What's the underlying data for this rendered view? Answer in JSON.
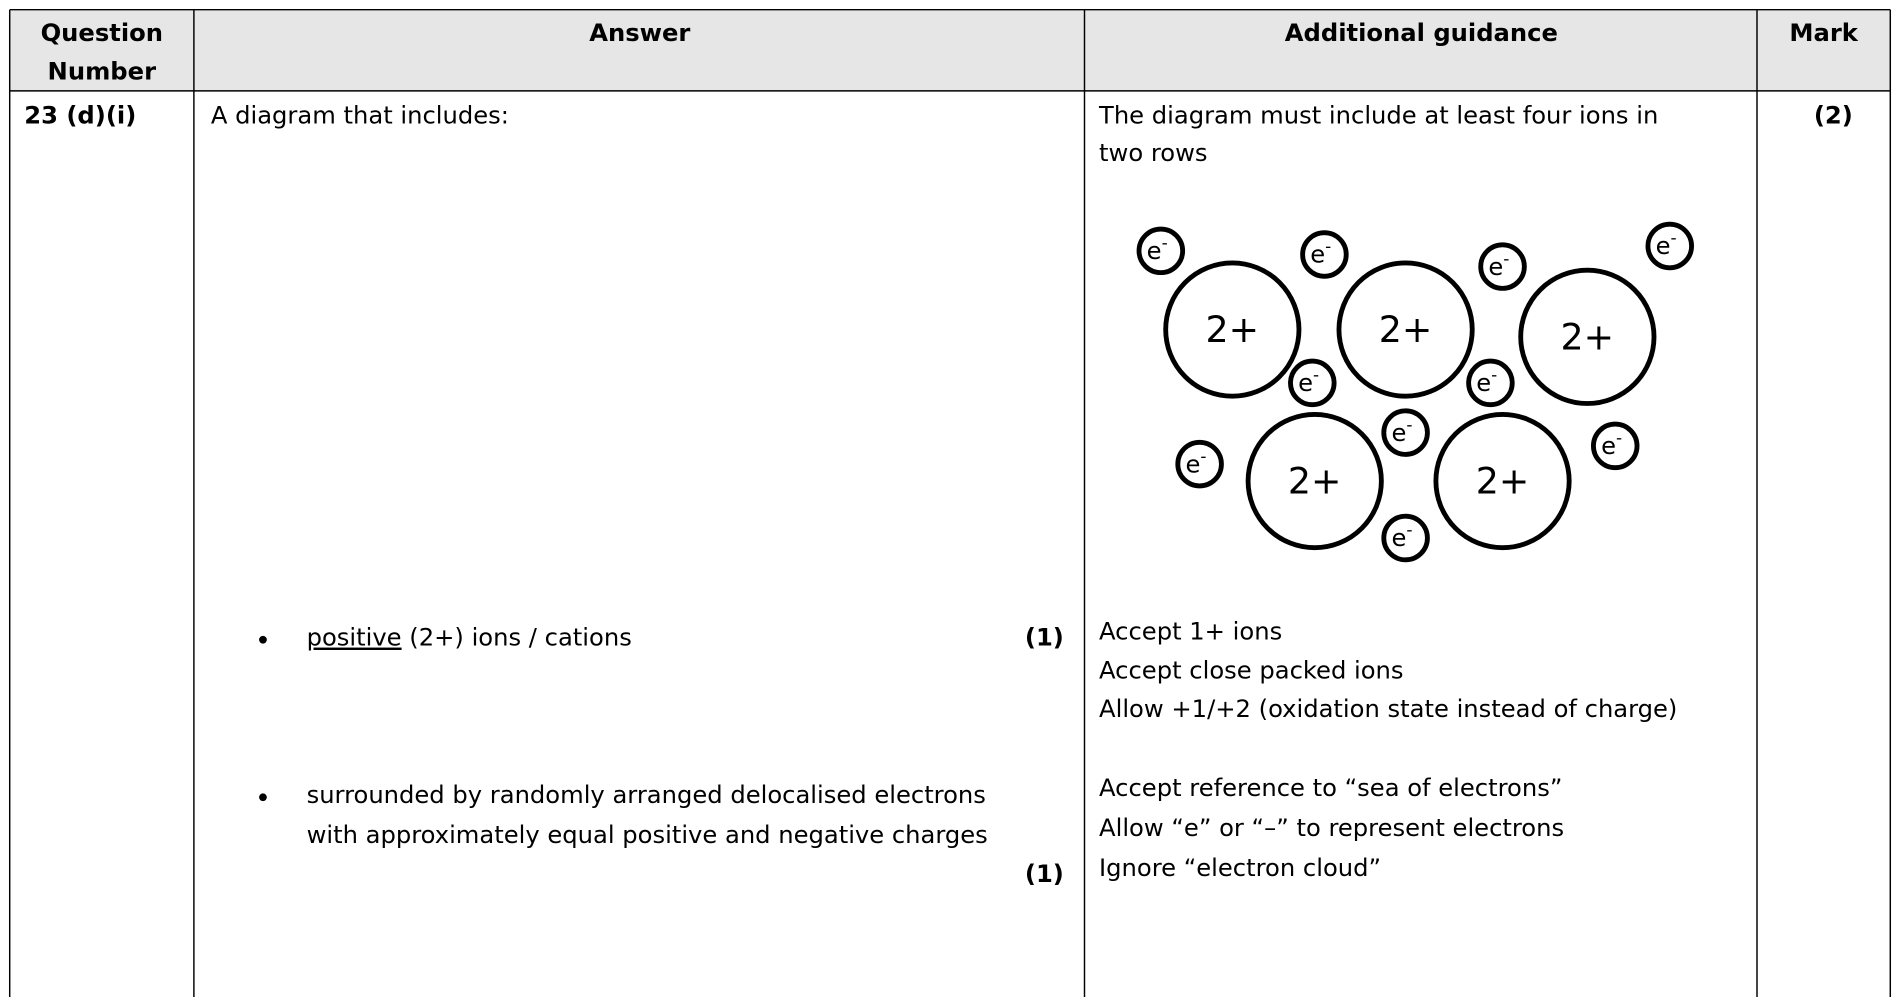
{
  "header": {
    "question_number": [
      "Question",
      "Number"
    ],
    "answer": "Answer",
    "guidance": "Additional guidance",
    "mark": "Mark"
  },
  "row": {
    "question": "23 (d)(i)",
    "answer": {
      "intro": "A diagram that includes:",
      "point1": {
        "underlined": "positive",
        "text": " (2+) ions / cations",
        "mark": "(1)"
      },
      "point2": {
        "lines": [
          "surrounded by randomly arranged delocalised electrons",
          "with approximately equal positive and negative charges"
        ],
        "mark": "(1)"
      }
    },
    "guidance": {
      "intro": [
        "The diagram must include at least four ions in",
        "two rows"
      ],
      "diagram": {
        "ions": [
          "2+",
          "2+",
          "2+",
          "2+",
          "2+"
        ],
        "electrons": [
          {
            "symbol": "e",
            "charge": "-"
          },
          {
            "symbol": "e",
            "charge": "-"
          },
          {
            "symbol": "e",
            "charge": "-"
          },
          {
            "symbol": "e",
            "charge": "-"
          },
          {
            "symbol": "e",
            "charge": "-"
          },
          {
            "symbol": "e",
            "charge": "-"
          },
          {
            "symbol": "e",
            "charge": "-"
          },
          {
            "symbol": "e",
            "charge": "-"
          },
          {
            "symbol": "e",
            "charge": "-"
          },
          {
            "symbol": "e",
            "charge": "-"
          }
        ]
      },
      "point1": [
        "Accept 1+ ions",
        "Accept close packed ions",
        "Allow +1/+2 (oxidation state instead of charge)"
      ],
      "point2": [
        "Accept reference to “sea of electrons”",
        "Allow “e” or “–” to represent electrons",
        "Ignore “electron cloud”"
      ]
    },
    "mark": "(2)"
  }
}
